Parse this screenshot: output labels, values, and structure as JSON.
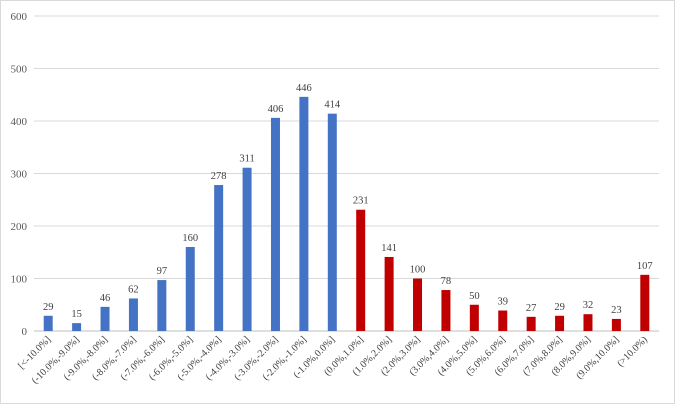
{
  "chart_data": {
    "type": "bar",
    "title": "",
    "xlabel": "",
    "ylabel": "",
    "ylim": [
      0,
      600
    ],
    "yticks": [
      0,
      100,
      200,
      300,
      400,
      500,
      600
    ],
    "grid": true,
    "legend": "none",
    "categories": [
      "[<-10.0%]",
      "(-10.0%,-9.0%]",
      "(-9.0%,-8.0%]",
      "(-8.0%,-7.0%]",
      "(-7.0%,-6.0%]",
      "(-6.0%,-5.0%]",
      "(-5.0%,-4.0%]",
      "(-4.0%,-3.0%]",
      "(-3.0%,-2.0%]",
      "(-2.0%,-1.0%]",
      "(-1.0%,0.0%]",
      "(0.0%,1.0%]",
      "(1.0%,2.0%]",
      "(2.0%,3.0%]",
      "(3.0%,4.0%]",
      "(4.0%,5.0%]",
      "(5.0%,6.0%]",
      "(6.0%,7.0%]",
      "(7.0%,8.0%]",
      "(8.0%,9.0%]",
      "(9.0%,10.0%]",
      "(>10.0%)"
    ],
    "values": [
      29,
      15,
      46,
      62,
      97,
      160,
      278,
      311,
      406,
      446,
      414,
      231,
      141,
      100,
      78,
      50,
      39,
      27,
      29,
      32,
      23,
      107
    ],
    "colors": {
      "negative": "#4472c4",
      "positive": "#c00000"
    },
    "negative_count": 11
  }
}
